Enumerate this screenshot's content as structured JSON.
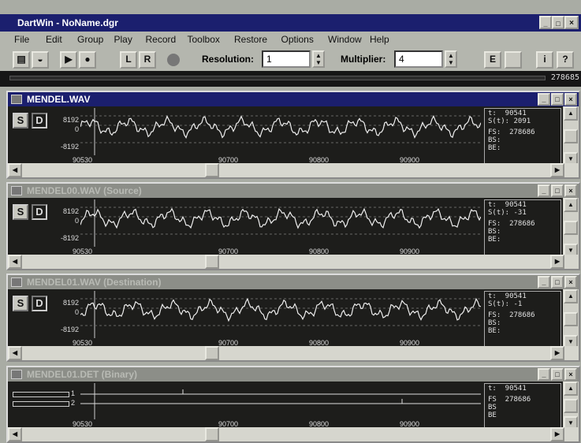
{
  "window": {
    "title": "DartWin - NoName.dgr"
  },
  "menu": [
    "File",
    "Edit",
    "Group",
    "Play",
    "Record",
    "Toolbox",
    "Restore",
    "Options",
    "Window",
    "Help"
  ],
  "toolbar": {
    "buttons": [
      "L",
      "R"
    ],
    "resolution_label": "Resolution:",
    "resolution": "1",
    "multiplier_label": "Multiplier:",
    "multiplier": "4",
    "right_buttons": [
      "E",
      "i",
      "?"
    ]
  },
  "position": "278685",
  "panels": [
    {
      "title": "MENDEL.WAV",
      "buttons": [
        "S",
        "D"
      ],
      "y_labels": [
        "8192",
        "0",
        "-8192"
      ],
      "x_labels": [
        "90530",
        "90700",
        "90800",
        "90900"
      ],
      "info": [
        "t:  90541",
        "S(t): 2091",
        "FS:  278686",
        "BS:",
        "BE:"
      ]
    },
    {
      "title": "MENDEL00.WAV (Source)",
      "buttons": [
        "S",
        "D"
      ],
      "y_labels": [
        "8192",
        "0",
        "-8192"
      ],
      "x_labels": [
        "90530",
        "90700",
        "90800",
        "90900"
      ],
      "info": [
        "t:  90541",
        "S(t): -31",
        "FS:  278686",
        "BS:",
        "BE:"
      ]
    },
    {
      "title": "MENDEL01.WAV (Destination)",
      "buttons": [
        "S",
        "D"
      ],
      "y_labels": [
        "8192",
        "0",
        "-8192"
      ],
      "x_labels": [
        "90530",
        "90700",
        "90800",
        "90900"
      ],
      "info": [
        "t:  90541",
        "S(t): -1",
        "FS:  278686",
        "BS:",
        "BE:"
      ]
    },
    {
      "title": "MENDEL01.DET (Binary)",
      "channels": [
        "1",
        "2"
      ],
      "x_labels": [
        "90530",
        "90700",
        "90800",
        "90900"
      ],
      "info": [
        "t:  90541",
        "FS  278686",
        "BS",
        "BE"
      ]
    }
  ]
}
